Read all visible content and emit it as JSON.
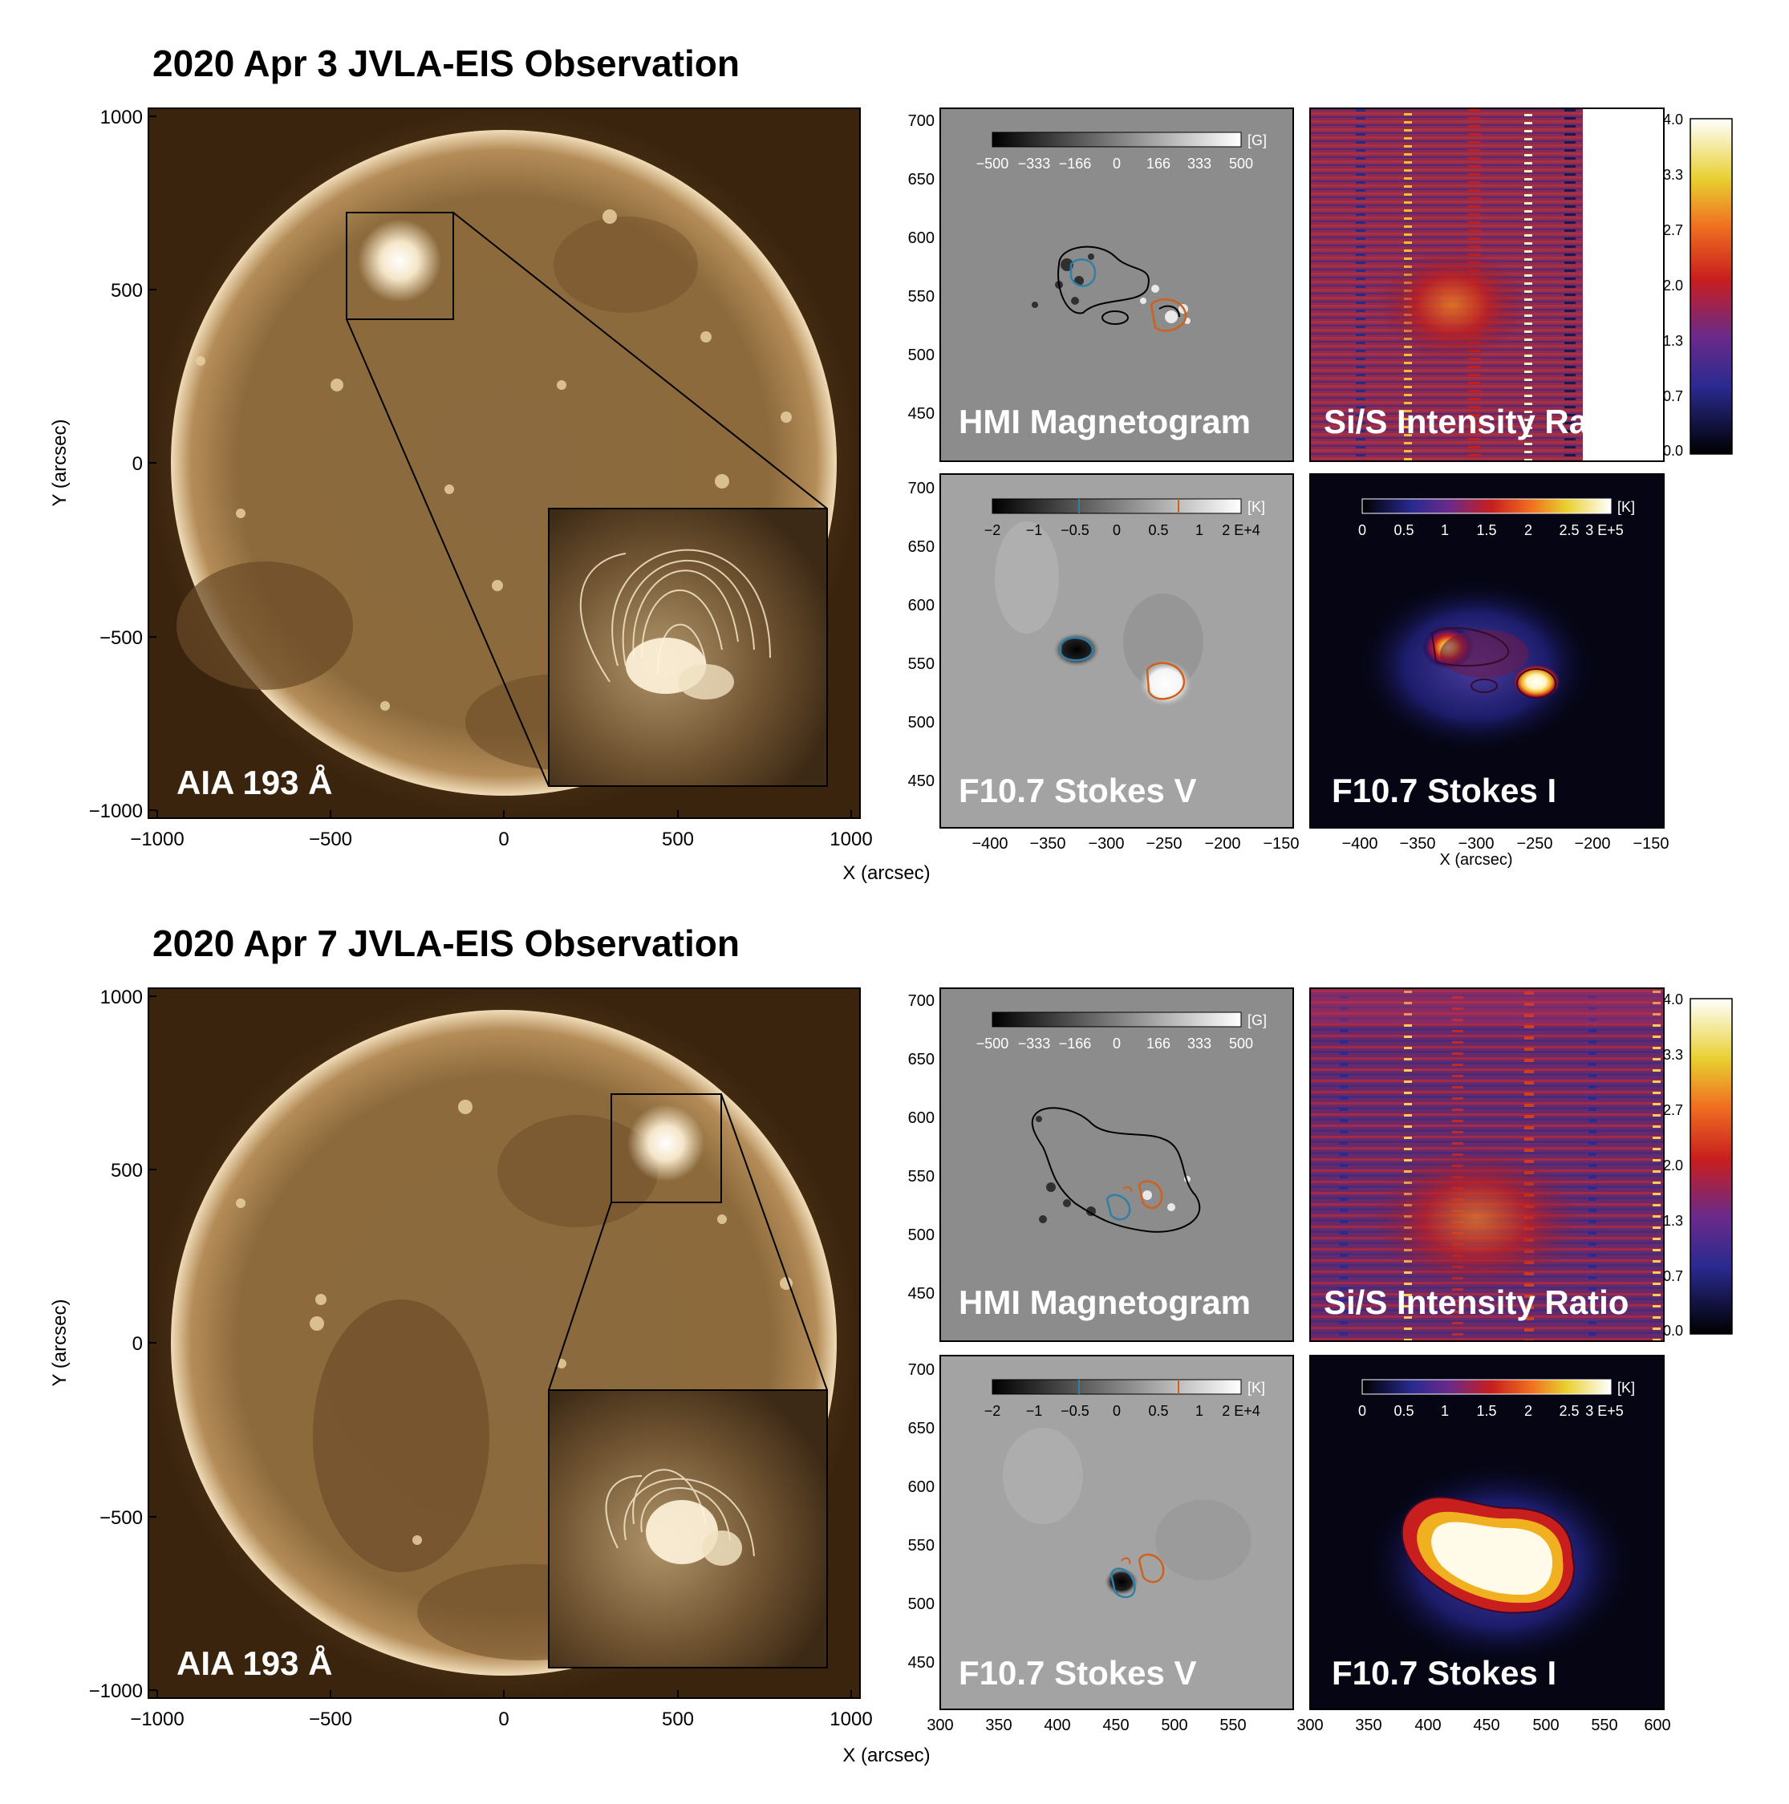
{
  "observations": [
    {
      "title": "2020 Apr 3 JVLA-EIS Observation",
      "full_disk": {
        "label": "AIA 193 Å",
        "x_ticks": [
          "−1000",
          "−500",
          "0",
          "500",
          "1000"
        ],
        "y_ticks": [
          "1000",
          "500",
          "0",
          "−500",
          "−1000"
        ],
        "xlabel": "X (arcsec)",
        "ylabel": "Y (arcsec)"
      },
      "panels": {
        "hmi": {
          "label": "HMI Magnetogram",
          "unit": "[G]",
          "cbar_ticks": [
            "−500",
            "−333",
            "−166",
            "0",
            "166",
            "333",
            "500"
          ],
          "y_ticks": [
            "700",
            "650",
            "600",
            "550",
            "500",
            "450"
          ]
        },
        "ratio": {
          "label": "Si/S Intensity Ratio",
          "cbar_ticks": [
            "4.0",
            "3.3",
            "2.7",
            "2.0",
            "1.3",
            "0.7",
            "0.0"
          ]
        },
        "stokes_v": {
          "label": "F10.7 Stokes V",
          "unit": "[K]",
          "cbar_ticks": [
            "−2",
            "−1",
            "−0.5",
            "0",
            "0.5",
            "1",
            "2 E+4"
          ],
          "y_ticks": [
            "700",
            "650",
            "600",
            "550",
            "500",
            "450"
          ],
          "x_ticks": [
            "−400",
            "−350",
            "−300",
            "−250",
            "−200",
            "−150"
          ]
        },
        "stokes_i": {
          "label": "F10.7 Stokes I",
          "unit": "[K]",
          "cbar_ticks": [
            "0",
            "0.5",
            "1",
            "1.5",
            "2",
            "2.5",
            "3 E+5"
          ],
          "x_ticks": [
            "−400",
            "−350",
            "−300",
            "−250",
            "−200",
            "−150"
          ],
          "xlabel": "X (arcsec)"
        },
        "shared_xlabel": "X (arcsec)"
      }
    },
    {
      "title": "2020 Apr 7 JVLA-EIS Observation",
      "full_disk": {
        "label": "AIA 193 Å",
        "x_ticks": [
          "−1000",
          "−500",
          "0",
          "500",
          "1000"
        ],
        "y_ticks": [
          "1000",
          "500",
          "0",
          "−500",
          "−1000"
        ],
        "xlabel": "X (arcsec)",
        "ylabel": "Y (arcsec)"
      },
      "panels": {
        "hmi": {
          "label": "HMI Magnetogram",
          "unit": "[G]",
          "cbar_ticks": [
            "−500",
            "−333",
            "−166",
            "0",
            "166",
            "333",
            "500"
          ],
          "y_ticks": [
            "700",
            "650",
            "600",
            "550",
            "500",
            "450"
          ]
        },
        "ratio": {
          "label": "Si/S Intensity Ratio",
          "cbar_ticks": [
            "4.0",
            "3.3",
            "2.7",
            "2.0",
            "1.3",
            "0.7",
            "0.0"
          ]
        },
        "stokes_v": {
          "label": "F10.7 Stokes V",
          "unit": "[K]",
          "cbar_ticks": [
            "−2",
            "−1",
            "−0.5",
            "0",
            "0.5",
            "1",
            "2 E+4"
          ],
          "y_ticks": [
            "700",
            "650",
            "600",
            "550",
            "500",
            "450"
          ],
          "x_ticks": [
            "300",
            "350",
            "400",
            "450",
            "500",
            "550"
          ]
        },
        "stokes_i": {
          "label": "F10.7 Stokes I",
          "unit": "[K]",
          "cbar_ticks": [
            "0",
            "0.5",
            "1",
            "1.5",
            "2",
            "2.5",
            "3 E+5"
          ],
          "x_ticks": [
            "300",
            "350",
            "400",
            "450",
            "500",
            "550",
            "600"
          ]
        },
        "shared_xlabel": "X (arcsec)"
      }
    }
  ],
  "colors": {
    "aia_dark": "#3a240e",
    "aia_mid": "#8a6232",
    "aia_bright": "#f5e6c8",
    "contour_blue": "#2f7fa8",
    "contour_orange": "#d0601c",
    "hmi_gray": "#8c8c8c",
    "stokes_v_gray": "#a3a3a3",
    "stokes_i_dark": "#050514"
  }
}
